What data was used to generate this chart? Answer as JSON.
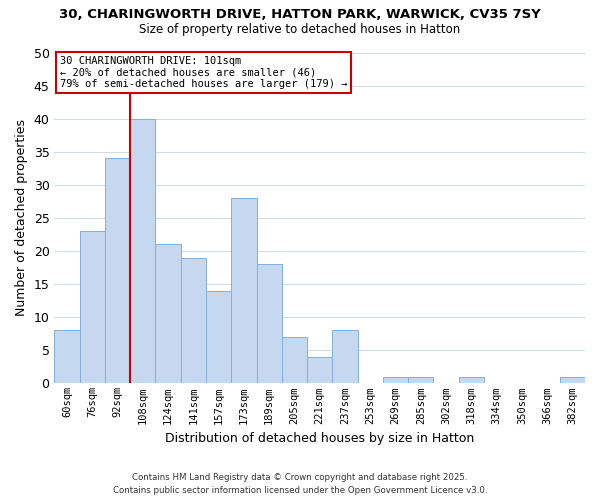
{
  "title_line1": "30, CHARINGWORTH DRIVE, HATTON PARK, WARWICK, CV35 7SY",
  "title_line2": "Size of property relative to detached houses in Hatton",
  "bar_labels": [
    "60sqm",
    "76sqm",
    "92sqm",
    "108sqm",
    "124sqm",
    "141sqm",
    "157sqm",
    "173sqm",
    "189sqm",
    "205sqm",
    "221sqm",
    "237sqm",
    "253sqm",
    "269sqm",
    "285sqm",
    "302sqm",
    "318sqm",
    "334sqm",
    "350sqm",
    "366sqm",
    "382sqm"
  ],
  "bar_values": [
    8,
    23,
    34,
    40,
    21,
    19,
    14,
    28,
    18,
    7,
    4,
    8,
    0,
    1,
    1,
    0,
    1,
    0,
    0,
    0,
    1
  ],
  "bar_color": "#c5d8f0",
  "bar_edge_color": "#7fb0dc",
  "vline_color": "#cc0000",
  "xlabel": "Distribution of detached houses by size in Hatton",
  "ylabel": "Number of detached properties",
  "ylim": [
    0,
    50
  ],
  "yticks": [
    0,
    5,
    10,
    15,
    20,
    25,
    30,
    35,
    40,
    45,
    50
  ],
  "annotation_title": "30 CHARINGWORTH DRIVE: 101sqm",
  "annotation_line1": "← 20% of detached houses are smaller (46)",
  "annotation_line2": "79% of semi-detached houses are larger (179) →",
  "footer_line1": "Contains HM Land Registry data © Crown copyright and database right 2025.",
  "footer_line2": "Contains public sector information licensed under the Open Government Licence v3.0.",
  "background_color": "#ffffff",
  "grid_color": "#d0dce8",
  "annotation_box_color": "#ffffff",
  "annotation_box_edge": "#cc0000"
}
